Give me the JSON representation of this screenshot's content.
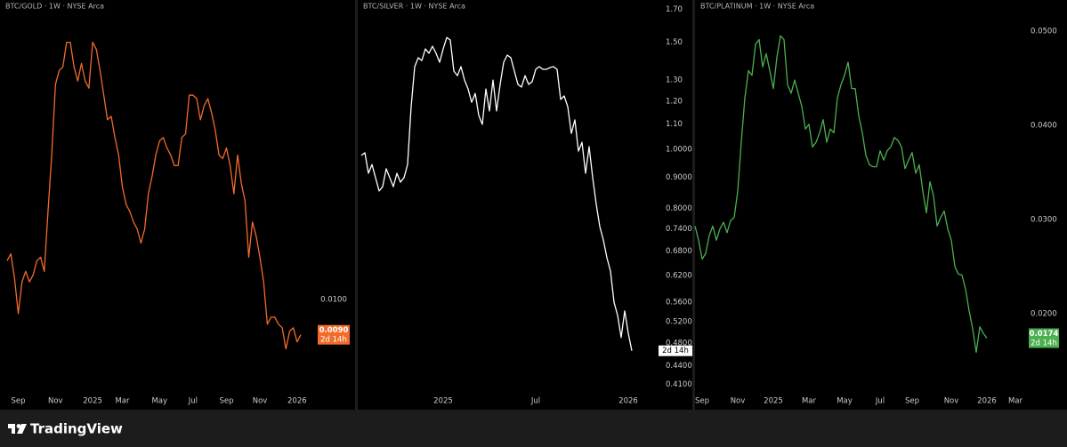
{
  "chart_data": [
    {
      "type": "line",
      "title": "BTC/GOLD · 1W · NYSE Arca",
      "color": "#f26b2a",
      "log_scale": false,
      "categories": [
        null,
        null,
        null,
        "Sep",
        null,
        null,
        null,
        null,
        null,
        null,
        null,
        null,
        null,
        "Nov",
        null,
        null,
        null,
        null,
        null,
        null,
        null,
        null,
        null,
        "2025",
        null,
        null,
        null,
        null,
        null,
        null,
        null,
        "Mar",
        null,
        null,
        null,
        null,
        null,
        null,
        null,
        null,
        null,
        "May",
        null,
        null,
        null,
        null,
        null,
        null,
        null,
        null,
        "Jul",
        null,
        null,
        null,
        null,
        null,
        null,
        null,
        null,
        "Sep",
        null,
        null,
        null,
        null,
        null,
        null,
        null,
        null,
        "Nov",
        null,
        null,
        null,
        null,
        null,
        null,
        null,
        null,
        null,
        "2026",
        null
      ],
      "values": [
        0.0111,
        0.0113,
        0.0106,
        0.0096,
        0.0105,
        0.0108,
        0.0105,
        0.0107,
        0.0111,
        0.0112,
        0.0108,
        0.0125,
        0.0141,
        0.0161,
        0.0165,
        0.0166,
        0.0173,
        0.0173,
        0.0166,
        0.0162,
        0.0167,
        0.0162,
        0.016,
        0.0173,
        0.0171,
        0.0165,
        0.0158,
        0.0151,
        0.0152,
        0.0146,
        0.0141,
        0.0132,
        0.0127,
        0.0125,
        0.0122,
        0.012,
        0.0116,
        0.012,
        0.013,
        0.0135,
        0.0141,
        0.0145,
        0.0146,
        0.0143,
        0.0141,
        0.0138,
        0.0138,
        0.0146,
        0.0147,
        0.0158,
        0.0158,
        0.0157,
        0.0151,
        0.0155,
        0.0157,
        0.0153,
        0.0148,
        0.0141,
        0.014,
        0.0143,
        0.0138,
        0.013,
        0.0141,
        0.0133,
        0.0128,
        0.0112,
        0.0122,
        0.0118,
        0.0112,
        0.0105,
        0.0093,
        0.0095,
        0.0095,
        0.0093,
        0.0092,
        0.0086,
        0.0091,
        0.0092,
        0.0088,
        0.009
      ],
      "ylim": [
        0.0069,
        0.0185
      ],
      "yticks": [
        {
          "value": 0.01,
          "label": "0.0100"
        }
      ],
      "price_label": {
        "value": 0.009,
        "label": "0.0090"
      },
      "countdown": "2d 14h"
    },
    {
      "type": "line",
      "title": "BTC/SILVER · 1W · NYSE Arca",
      "color": "#ffffff",
      "log_scale": true,
      "categories": [
        null,
        null,
        null,
        null,
        null,
        null,
        null,
        null,
        null,
        null,
        null,
        null,
        null,
        null,
        null,
        null,
        null,
        null,
        null,
        null,
        null,
        null,
        null,
        "2025",
        null,
        null,
        null,
        null,
        null,
        null,
        null,
        null,
        null,
        null,
        null,
        null,
        null,
        null,
        null,
        null,
        null,
        null,
        null,
        null,
        null,
        null,
        null,
        null,
        null,
        "Jul",
        null,
        null,
        null,
        null,
        null,
        null,
        null,
        null,
        null,
        null,
        null,
        null,
        null,
        null,
        null,
        null,
        null,
        null,
        null,
        null,
        null,
        null,
        null,
        null,
        null,
        "2026",
        null
      ],
      "values": [
        0.977,
        0.987,
        0.913,
        0.944,
        0.898,
        0.854,
        0.868,
        0.929,
        0.898,
        0.868,
        0.913,
        0.883,
        0.898,
        0.944,
        1.175,
        1.368,
        1.415,
        1.4,
        1.463,
        1.439,
        1.478,
        1.439,
        1.391,
        1.463,
        1.528,
        1.513,
        1.345,
        1.322,
        1.368,
        1.3,
        1.257,
        1.195,
        1.236,
        1.137,
        1.099,
        1.257,
        1.156,
        1.3,
        1.156,
        1.279,
        1.391,
        1.429,
        1.415,
        1.345,
        1.279,
        1.266,
        1.322,
        1.279,
        1.292,
        1.354,
        1.368,
        1.354,
        1.354,
        1.363,
        1.368,
        1.354,
        1.208,
        1.224,
        1.175,
        1.062,
        1.118,
        0.993,
        1.027,
        0.913,
        1.01,
        0.898,
        0.812,
        0.746,
        0.709,
        0.663,
        0.63,
        0.56,
        0.533,
        0.49,
        0.542,
        0.498,
        0.466
      ],
      "ylim": [
        0.374,
        1.761
      ],
      "yticks": [
        {
          "value": 1.7,
          "label": "1.70"
        },
        {
          "value": 1.5,
          "label": "1.50"
        },
        {
          "value": 1.3,
          "label": "1.30"
        },
        {
          "value": 1.2,
          "label": "1.20"
        },
        {
          "value": 1.1,
          "label": "1.10"
        },
        {
          "value": 1,
          "label": "1.0000"
        },
        {
          "value": 0.9,
          "label": "0.9000"
        },
        {
          "value": 0.8,
          "label": "0.8000"
        },
        {
          "value": 0.74,
          "label": "0.7400"
        },
        {
          "value": 0.68,
          "label": "0.6800"
        },
        {
          "value": 0.62,
          "label": "0.6200"
        },
        {
          "value": 0.56,
          "label": "0.5600"
        },
        {
          "value": 0.52,
          "label": "0.5200"
        },
        {
          "value": 0.48,
          "label": "0.4800"
        },
        {
          "value": 0.44,
          "label": "0.4400"
        },
        {
          "value": 0.41,
          "label": "0.4100"
        }
      ],
      "countdown": "2d 14h"
    },
    {
      "type": "line",
      "title": "BTC/PLATINUM · 1W · NYSE Arca",
      "color": "#4caf50",
      "log_scale": false,
      "categories": [
        null,
        null,
        "Sep",
        null,
        null,
        null,
        null,
        null,
        null,
        null,
        null,
        null,
        "Nov",
        null,
        null,
        null,
        null,
        null,
        null,
        null,
        null,
        null,
        "2025",
        null,
        null,
        null,
        null,
        null,
        null,
        null,
        null,
        null,
        "Mar",
        null,
        null,
        null,
        null,
        null,
        null,
        null,
        null,
        null,
        "May",
        null,
        null,
        null,
        null,
        null,
        null,
        null,
        null,
        null,
        "Jul",
        null,
        null,
        null,
        null,
        null,
        null,
        null,
        null,
        "Sep",
        null,
        null,
        null,
        null,
        null,
        null,
        null,
        null,
        null,
        null,
        "Nov",
        null,
        null,
        null,
        null,
        null,
        null,
        null,
        null,
        null,
        "2026",
        null,
        null,
        null,
        null,
        null,
        null,
        null,
        "Mar"
      ],
      "values": [
        0.0293,
        0.0278,
        0.0258,
        0.0264,
        0.0283,
        0.0293,
        0.0278,
        0.029,
        0.0297,
        0.0286,
        0.0299,
        0.0302,
        0.033,
        0.0382,
        0.0429,
        0.0458,
        0.0453,
        0.0486,
        0.0491,
        0.0462,
        0.0476,
        0.0458,
        0.0439,
        0.0472,
        0.0495,
        0.0491,
        0.0443,
        0.0434,
        0.0448,
        0.0434,
        0.042,
        0.0396,
        0.0401,
        0.0377,
        0.0382,
        0.0392,
        0.0406,
        0.0382,
        0.0396,
        0.0392,
        0.0429,
        0.0443,
        0.0453,
        0.0467,
        0.0439,
        0.0439,
        0.041,
        0.0392,
        0.0368,
        0.0358,
        0.0356,
        0.0356,
        0.0373,
        0.0363,
        0.0373,
        0.0377,
        0.0387,
        0.0384,
        0.0377,
        0.0354,
        0.0363,
        0.0371,
        0.0349,
        0.0358,
        0.033,
        0.0307,
        0.034,
        0.0325,
        0.0293,
        0.0302,
        0.0309,
        0.029,
        0.0278,
        0.025,
        0.0242,
        0.0241,
        0.0226,
        0.0203,
        0.0184,
        0.0159,
        0.0186,
        0.0179,
        0.0174,
        null,
        null,
        null,
        null,
        null,
        null,
        null,
        null
      ],
      "ylim": [
        0.0099,
        0.0533
      ],
      "yticks": [
        {
          "value": 0.05,
          "label": "0.0500"
        },
        {
          "value": 0.04,
          "label": "0.0400"
        },
        {
          "value": 0.03,
          "label": "0.0300"
        },
        {
          "value": 0.02,
          "label": "0.0200"
        }
      ],
      "price_label": {
        "value": 0.0174,
        "label": "0.0174"
      },
      "countdown": "2d 14h"
    }
  ],
  "footer": {
    "brand": "TradingView"
  }
}
